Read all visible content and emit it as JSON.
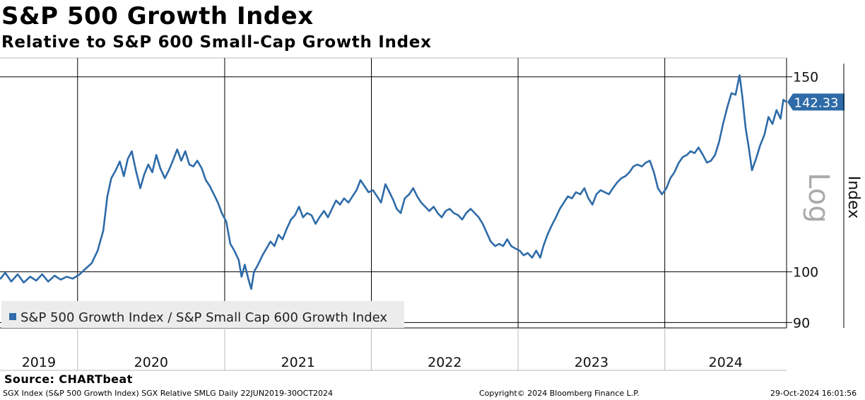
{
  "header": {
    "title": "S&P 500 Growth Index",
    "subtitle": "Relative to S&P 600 Small-Cap Growth Index"
  },
  "chart_data": {
    "type": "line",
    "title": "S&P 500 Growth Index",
    "subtitle": "Relative to S&P 600 Small-Cap Growth Index",
    "ylabel": "Index",
    "scale_label": "Log",
    "y_scale": "log",
    "ylim": [
      89,
      156
    ],
    "xlim": [
      "2019-06-22",
      "2024-10-30"
    ],
    "y_ticks": [
      90,
      100,
      150
    ],
    "x_tick_labels": [
      "2019",
      "2020",
      "2021",
      "2022",
      "2023",
      "2024"
    ],
    "year_boundaries": [
      "2020-01-01",
      "2021-01-01",
      "2022-01-01",
      "2023-01-01",
      "2024-01-01"
    ],
    "grid": true,
    "legend_position": "bottom-left",
    "last_value_label": "142.33",
    "colors": {
      "series": "#2E6BA8",
      "last_value_bg": "#2E6BA8"
    },
    "series": [
      {
        "name": "S&P 500 Growth Index / S&P Small Cap 600 Growth Index",
        "points": [
          [
            "2019-06-22",
            98.5
          ],
          [
            "2019-07-05",
            99.8
          ],
          [
            "2019-07-20",
            98.0
          ],
          [
            "2019-08-05",
            99.5
          ],
          [
            "2019-08-20",
            97.8
          ],
          [
            "2019-09-05",
            99.0
          ],
          [
            "2019-09-20",
            98.2
          ],
          [
            "2019-10-05",
            99.5
          ],
          [
            "2019-10-20",
            98.0
          ],
          [
            "2019-11-05",
            99.2
          ],
          [
            "2019-11-20",
            98.4
          ],
          [
            "2019-12-05",
            99.0
          ],
          [
            "2019-12-20",
            98.6
          ],
          [
            "2020-01-05",
            99.4
          ],
          [
            "2020-01-20",
            100.6
          ],
          [
            "2020-02-05",
            101.8
          ],
          [
            "2020-02-20",
            104.5
          ],
          [
            "2020-03-05",
            109.0
          ],
          [
            "2020-03-15",
            117.0
          ],
          [
            "2020-03-25",
            121.5
          ],
          [
            "2020-04-05",
            123.5
          ],
          [
            "2020-04-15",
            125.8
          ],
          [
            "2020-04-25",
            122.0
          ],
          [
            "2020-05-05",
            126.5
          ],
          [
            "2020-05-15",
            128.5
          ],
          [
            "2020-05-25",
            123.5
          ],
          [
            "2020-06-05",
            119.0
          ],
          [
            "2020-06-15",
            122.5
          ],
          [
            "2020-06-25",
            125.0
          ],
          [
            "2020-07-05",
            123.0
          ],
          [
            "2020-07-15",
            127.5
          ],
          [
            "2020-07-25",
            124.0
          ],
          [
            "2020-08-05",
            121.5
          ],
          [
            "2020-08-15",
            123.5
          ],
          [
            "2020-08-25",
            126.0
          ],
          [
            "2020-09-05",
            129.0
          ],
          [
            "2020-09-15",
            126.0
          ],
          [
            "2020-09-25",
            128.5
          ],
          [
            "2020-10-05",
            125.0
          ],
          [
            "2020-10-15",
            124.5
          ],
          [
            "2020-10-25",
            126.0
          ],
          [
            "2020-11-05",
            124.0
          ],
          [
            "2020-11-15",
            121.0
          ],
          [
            "2020-11-25",
            119.5
          ],
          [
            "2020-12-05",
            117.5
          ],
          [
            "2020-12-15",
            115.5
          ],
          [
            "2020-12-25",
            113.0
          ],
          [
            "2021-01-05",
            111.0
          ],
          [
            "2021-01-15",
            106.0
          ],
          [
            "2021-01-25",
            104.5
          ],
          [
            "2021-02-05",
            102.5
          ],
          [
            "2021-02-12",
            99.0
          ],
          [
            "2021-02-20",
            101.5
          ],
          [
            "2021-03-01",
            98.5
          ],
          [
            "2021-03-08",
            96.5
          ],
          [
            "2021-03-15",
            100.0
          ],
          [
            "2021-03-25",
            101.5
          ],
          [
            "2021-04-05",
            103.5
          ],
          [
            "2021-04-15",
            105.0
          ],
          [
            "2021-04-25",
            106.5
          ],
          [
            "2021-05-05",
            105.5
          ],
          [
            "2021-05-15",
            108.0
          ],
          [
            "2021-05-25",
            107.0
          ],
          [
            "2021-06-05",
            109.5
          ],
          [
            "2021-06-15",
            111.5
          ],
          [
            "2021-06-25",
            112.5
          ],
          [
            "2021-07-05",
            114.5
          ],
          [
            "2021-07-15",
            112.0
          ],
          [
            "2021-07-25",
            113.0
          ],
          [
            "2021-08-05",
            112.5
          ],
          [
            "2021-08-15",
            110.5
          ],
          [
            "2021-08-25",
            112.0
          ],
          [
            "2021-09-05",
            113.5
          ],
          [
            "2021-09-15",
            112.0
          ],
          [
            "2021-09-25",
            114.0
          ],
          [
            "2021-10-05",
            116.0
          ],
          [
            "2021-10-15",
            115.0
          ],
          [
            "2021-10-25",
            116.5
          ],
          [
            "2021-11-05",
            115.5
          ],
          [
            "2021-11-15",
            117.0
          ],
          [
            "2021-11-25",
            118.5
          ],
          [
            "2021-12-05",
            121.0
          ],
          [
            "2021-12-15",
            119.5
          ],
          [
            "2021-12-25",
            118.0
          ],
          [
            "2022-01-05",
            118.5
          ],
          [
            "2022-01-15",
            117.0
          ],
          [
            "2022-01-25",
            115.5
          ],
          [
            "2022-02-05",
            120.0
          ],
          [
            "2022-02-15",
            118.0
          ],
          [
            "2022-02-25",
            116.0
          ],
          [
            "2022-03-05",
            114.0
          ],
          [
            "2022-03-15",
            113.0
          ],
          [
            "2022-03-25",
            116.5
          ],
          [
            "2022-04-05",
            117.5
          ],
          [
            "2022-04-15",
            119.0
          ],
          [
            "2022-04-25",
            117.0
          ],
          [
            "2022-05-05",
            115.5
          ],
          [
            "2022-05-15",
            114.5
          ],
          [
            "2022-05-25",
            113.5
          ],
          [
            "2022-06-05",
            114.5
          ],
          [
            "2022-06-15",
            113.0
          ],
          [
            "2022-06-25",
            112.0
          ],
          [
            "2022-07-05",
            113.5
          ],
          [
            "2022-07-15",
            114.0
          ],
          [
            "2022-07-25",
            113.0
          ],
          [
            "2022-08-05",
            112.5
          ],
          [
            "2022-08-15",
            111.5
          ],
          [
            "2022-08-25",
            113.0
          ],
          [
            "2022-09-05",
            114.0
          ],
          [
            "2022-09-15",
            113.0
          ],
          [
            "2022-09-25",
            112.0
          ],
          [
            "2022-10-05",
            110.5
          ],
          [
            "2022-10-15",
            108.5
          ],
          [
            "2022-10-25",
            106.5
          ],
          [
            "2022-11-05",
            105.5
          ],
          [
            "2022-11-15",
            106.0
          ],
          [
            "2022-11-25",
            105.5
          ],
          [
            "2022-12-05",
            107.0
          ],
          [
            "2022-12-15",
            105.5
          ],
          [
            "2022-12-25",
            105.0
          ],
          [
            "2023-01-05",
            104.5
          ],
          [
            "2023-01-15",
            103.5
          ],
          [
            "2023-01-25",
            104.0
          ],
          [
            "2023-02-05",
            103.0
          ],
          [
            "2023-02-15",
            104.5
          ],
          [
            "2023-02-25",
            103.0
          ],
          [
            "2023-03-05",
            105.5
          ],
          [
            "2023-03-15",
            108.0
          ],
          [
            "2023-03-25",
            110.0
          ],
          [
            "2023-04-05",
            112.0
          ],
          [
            "2023-04-15",
            114.0
          ],
          [
            "2023-04-25",
            115.5
          ],
          [
            "2023-05-05",
            117.0
          ],
          [
            "2023-05-15",
            116.5
          ],
          [
            "2023-05-25",
            118.0
          ],
          [
            "2023-06-05",
            117.5
          ],
          [
            "2023-06-15",
            119.0
          ],
          [
            "2023-06-25",
            116.5
          ],
          [
            "2023-07-05",
            115.0
          ],
          [
            "2023-07-15",
            117.5
          ],
          [
            "2023-07-25",
            118.5
          ],
          [
            "2023-08-05",
            118.0
          ],
          [
            "2023-08-15",
            117.5
          ],
          [
            "2023-08-25",
            119.0
          ],
          [
            "2023-09-05",
            120.5
          ],
          [
            "2023-09-15",
            121.5
          ],
          [
            "2023-09-25",
            122.0
          ],
          [
            "2023-10-05",
            123.0
          ],
          [
            "2023-10-15",
            124.5
          ],
          [
            "2023-10-25",
            125.0
          ],
          [
            "2023-11-05",
            124.5
          ],
          [
            "2023-11-15",
            125.5
          ],
          [
            "2023-11-25",
            126.0
          ],
          [
            "2023-12-05",
            123.0
          ],
          [
            "2023-12-15",
            119.0
          ],
          [
            "2023-12-25",
            117.5
          ],
          [
            "2024-01-05",
            119.0
          ],
          [
            "2024-01-15",
            121.5
          ],
          [
            "2024-01-25",
            123.0
          ],
          [
            "2024-02-05",
            125.5
          ],
          [
            "2024-02-15",
            127.0
          ],
          [
            "2024-02-25",
            127.5
          ],
          [
            "2024-03-05",
            128.5
          ],
          [
            "2024-03-15",
            128.0
          ],
          [
            "2024-03-25",
            129.5
          ],
          [
            "2024-04-05",
            127.5
          ],
          [
            "2024-04-15",
            125.5
          ],
          [
            "2024-04-25",
            126.0
          ],
          [
            "2024-05-05",
            127.5
          ],
          [
            "2024-05-15",
            131.0
          ],
          [
            "2024-05-25",
            136.0
          ],
          [
            "2024-06-05",
            141.0
          ],
          [
            "2024-06-15",
            145.0
          ],
          [
            "2024-06-25",
            144.5
          ],
          [
            "2024-07-05",
            150.5
          ],
          [
            "2024-07-12",
            144.0
          ],
          [
            "2024-07-20",
            135.0
          ],
          [
            "2024-07-28",
            129.5
          ],
          [
            "2024-08-05",
            123.5
          ],
          [
            "2024-08-15",
            126.5
          ],
          [
            "2024-08-25",
            130.0
          ],
          [
            "2024-09-05",
            133.0
          ],
          [
            "2024-09-15",
            138.0
          ],
          [
            "2024-09-25",
            136.0
          ],
          [
            "2024-10-05",
            140.0
          ],
          [
            "2024-10-15",
            137.5
          ],
          [
            "2024-10-22",
            143.0
          ],
          [
            "2024-10-30",
            142.33
          ]
        ]
      }
    ]
  },
  "footer": {
    "source": "Source: CHARTbeat",
    "ticker_info": "SGX Index (S&P 500 Growth Index) SGX Relative SMLG  Daily 22JUN2019-30OCT2024",
    "copyright": "Copyright© 2024 Bloomberg Finance L.P.",
    "timestamp": "29-Oct-2024 16:01:56"
  }
}
